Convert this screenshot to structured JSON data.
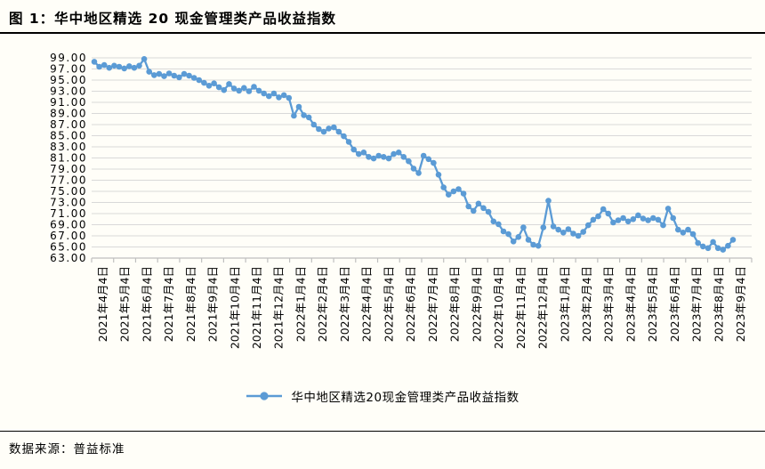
{
  "page": {
    "title": "图 1：华中地区精选 20 现金管理类产品收益指数",
    "source": "数据来源：普益标准"
  },
  "colors": {
    "series": "#5B9BD5",
    "grid": "#D9D9D9",
    "axis": "#BFBFBF",
    "text": "#000000",
    "background": "#FFFEF8",
    "rule": "#000000"
  },
  "chart_data": {
    "type": "line",
    "title": "华中地区精选 20 现金管理类产品收益指数",
    "legend": [
      "华中地区精选20现金管理类产品收益指数"
    ],
    "legend_position": "bottom",
    "grid": "horizontal",
    "ylim": [
      63,
      99
    ],
    "y_tick_step": 2,
    "y_tick_labels": [
      "99.00",
      "97.00",
      "95.00",
      "93.00",
      "91.00",
      "89.00",
      "87.00",
      "85.00",
      "83.00",
      "81.00",
      "79.00",
      "77.00",
      "75.00",
      "73.00",
      "71.00",
      "69.00",
      "67.00",
      "65.00",
      "63.00"
    ],
    "x_tick_labels": [
      "2021年4月4日",
      "2021年5月4日",
      "2021年6月4日",
      "2021年7月4日",
      "2021年8月4日",
      "2021年9月4日",
      "2021年10月4日",
      "2021年11月4日",
      "2021年12月4日",
      "2022年1月4日",
      "2022年2月4日",
      "2022年3月4日",
      "2022年4月4日",
      "2022年5月4日",
      "2022年6月4日",
      "2022年7月4日",
      "2022年8月4日",
      "2022年9月4日",
      "2022年10月4日",
      "2022年11月4日",
      "2022年12月4日",
      "2023年1月4日",
      "2023年2月4日",
      "2023年3月4日",
      "2023年4月4日",
      "2023年5月4日",
      "2023年6月4日",
      "2023年7月4日",
      "2023年8月4日",
      "2023年9月4日"
    ],
    "series": [
      {
        "name": "华中地区精选20现金管理类产品收益指数",
        "color": "#5B9BD5",
        "x": [
          "2021-04-04",
          "2021-04-11",
          "2021-04-18",
          "2021-04-25",
          "2021-05-02",
          "2021-05-09",
          "2021-05-16",
          "2021-05-23",
          "2021-05-30",
          "2021-06-06",
          "2021-06-13",
          "2021-06-20",
          "2021-06-27",
          "2021-07-04",
          "2021-07-11",
          "2021-07-18",
          "2021-07-25",
          "2021-08-01",
          "2021-08-08",
          "2021-08-15",
          "2021-08-22",
          "2021-08-29",
          "2021-09-05",
          "2021-09-12",
          "2021-09-19",
          "2021-09-26",
          "2021-10-03",
          "2021-10-10",
          "2021-10-17",
          "2021-10-24",
          "2021-10-31",
          "2021-11-07",
          "2021-11-14",
          "2021-11-21",
          "2021-11-28",
          "2021-12-05",
          "2021-12-12",
          "2021-12-19",
          "2021-12-26",
          "2022-01-02",
          "2022-01-09",
          "2022-01-16",
          "2022-01-23",
          "2022-01-30",
          "2022-02-06",
          "2022-02-13",
          "2022-02-20",
          "2022-02-27",
          "2022-03-06",
          "2022-03-13",
          "2022-03-20",
          "2022-03-27",
          "2022-04-03",
          "2022-04-10",
          "2022-04-17",
          "2022-04-24",
          "2022-05-01",
          "2022-05-08",
          "2022-05-15",
          "2022-05-22",
          "2022-05-29",
          "2022-06-05",
          "2022-06-12",
          "2022-06-19",
          "2022-06-26",
          "2022-07-03",
          "2022-07-10",
          "2022-07-17",
          "2022-07-24",
          "2022-07-31",
          "2022-08-07",
          "2022-08-14",
          "2022-08-21",
          "2022-08-28",
          "2022-09-04",
          "2022-09-11",
          "2022-09-18",
          "2022-09-25",
          "2022-10-02",
          "2022-10-09",
          "2022-10-16",
          "2022-10-23",
          "2022-10-30",
          "2022-11-06",
          "2022-11-13",
          "2022-11-20",
          "2022-11-27",
          "2022-12-04",
          "2022-12-11",
          "2022-12-18",
          "2022-12-25",
          "2023-01-01",
          "2023-01-08",
          "2023-01-15",
          "2023-01-22",
          "2023-01-29",
          "2023-02-05",
          "2023-02-12",
          "2023-02-19",
          "2023-02-26",
          "2023-03-05",
          "2023-03-12",
          "2023-03-19",
          "2023-03-26",
          "2023-04-02",
          "2023-04-09",
          "2023-04-16",
          "2023-04-23",
          "2023-04-30",
          "2023-05-07",
          "2023-05-14",
          "2023-05-21",
          "2023-05-28",
          "2023-06-04",
          "2023-06-11",
          "2023-06-18",
          "2023-06-25",
          "2023-07-02",
          "2023-07-09",
          "2023-07-16",
          "2023-07-23",
          "2023-07-30",
          "2023-08-06",
          "2023-08-13",
          "2023-08-20",
          "2023-08-27",
          "2023-09-03",
          "2023-09-10",
          "2023-09-17"
        ],
        "values": [
          98.3,
          97.4,
          97.7,
          97.2,
          97.6,
          97.4,
          97.1,
          97.5,
          97.2,
          97.6,
          98.8,
          96.5,
          95.9,
          96.1,
          95.7,
          96.2,
          95.8,
          95.5,
          96.1,
          95.8,
          95.4,
          95.0,
          94.5,
          94.0,
          94.4,
          93.7,
          93.2,
          94.3,
          93.5,
          93.1,
          93.6,
          93.0,
          93.8,
          93.1,
          92.6,
          92.1,
          92.6,
          91.9,
          92.3,
          91.8,
          88.6,
          90.2,
          88.7,
          88.3,
          87.0,
          86.2,
          85.7,
          86.3,
          86.5,
          85.7,
          84.9,
          83.9,
          82.5,
          81.7,
          82.0,
          81.2,
          80.9,
          81.4,
          81.2,
          80.9,
          81.7,
          82.0,
          81.2,
          80.4,
          79.1,
          78.3,
          81.4,
          80.8,
          80.1,
          78.0,
          75.7,
          74.4,
          75.0,
          75.4,
          74.6,
          72.3,
          71.5,
          72.8,
          72.0,
          71.3,
          69.6,
          69.1,
          67.8,
          67.3,
          66.0,
          66.8,
          68.5,
          66.3,
          65.4,
          65.2,
          68.5,
          73.3,
          68.7,
          68.1,
          67.6,
          68.2,
          67.4,
          67.0,
          67.7,
          68.9,
          69.9,
          70.5,
          71.8,
          71.0,
          69.4,
          69.8,
          70.2,
          69.6,
          70.0,
          70.7,
          70.1,
          69.8,
          70.2,
          69.9,
          68.9,
          71.9,
          70.2,
          68.1,
          67.6,
          68.1,
          67.3,
          65.7,
          65.1,
          64.8,
          65.9,
          64.8,
          64.5,
          65.2,
          66.3
        ]
      }
    ]
  }
}
